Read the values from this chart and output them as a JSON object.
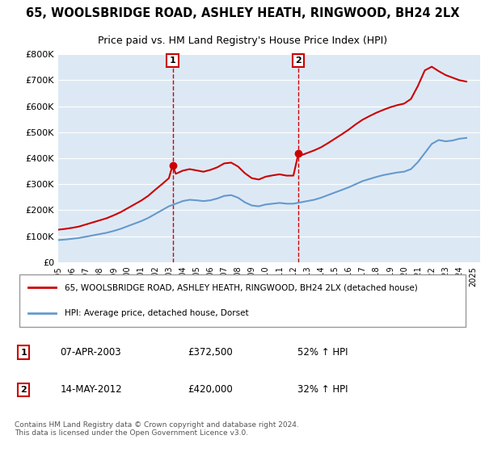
{
  "title": "65, WOOLSBRIDGE ROAD, ASHLEY HEATH, RINGWOOD, BH24 2LX",
  "subtitle": "Price paid vs. HM Land Registry's House Price Index (HPI)",
  "legend_line1": "65, WOOLSBRIDGE ROAD, ASHLEY HEATH, RINGWOOD, BH24 2LX (detached house)",
  "legend_line2": "HPI: Average price, detached house, Dorset",
  "footnote": "Contains HM Land Registry data © Crown copyright and database right 2024.\nThis data is licensed under the Open Government Licence v3.0.",
  "sale1": {
    "label": "1",
    "date": "07-APR-2003",
    "price": "£372,500",
    "change": "52% ↑ HPI"
  },
  "sale2": {
    "label": "2",
    "date": "14-MAY-2012",
    "price": "£420,000",
    "change": "32% ↑ HPI"
  },
  "sale1_x": 2003.27,
  "sale1_y": 372500,
  "sale2_x": 2012.37,
  "sale2_y": 420000,
  "bg_color": "#dce9f5",
  "plot_bg": "#dce9f5",
  "red_color": "#cc0000",
  "blue_color": "#6699cc",
  "ylim": [
    0,
    800000
  ],
  "xlim_start": 1995,
  "xlim_end": 2025.5,
  "hpi_years": [
    1995,
    1995.5,
    1996,
    1996.5,
    1997,
    1997.5,
    1998,
    1998.5,
    1999,
    1999.5,
    2000,
    2000.5,
    2001,
    2001.5,
    2002,
    2002.5,
    2003,
    2003.5,
    2004,
    2004.5,
    2005,
    2005.5,
    2006,
    2006.5,
    2007,
    2007.5,
    2008,
    2008.5,
    2009,
    2009.5,
    2010,
    2010.5,
    2011,
    2011.5,
    2012,
    2012.5,
    2013,
    2013.5,
    2014,
    2014.5,
    2015,
    2015.5,
    2016,
    2016.5,
    2017,
    2017.5,
    2018,
    2018.5,
    2019,
    2019.5,
    2020,
    2020.5,
    2021,
    2021.5,
    2022,
    2022.5,
    2023,
    2023.5,
    2024,
    2024.5
  ],
  "hpi_values": [
    85000,
    87000,
    90000,
    93000,
    98000,
    103000,
    108000,
    113000,
    120000,
    128000,
    138000,
    148000,
    158000,
    170000,
    185000,
    200000,
    215000,
    225000,
    235000,
    240000,
    238000,
    235000,
    238000,
    245000,
    255000,
    258000,
    248000,
    230000,
    218000,
    215000,
    222000,
    225000,
    228000,
    225000,
    225000,
    230000,
    235000,
    240000,
    248000,
    258000,
    268000,
    278000,
    288000,
    300000,
    312000,
    320000,
    328000,
    335000,
    340000,
    345000,
    348000,
    358000,
    385000,
    420000,
    455000,
    470000,
    465000,
    468000,
    475000,
    478000
  ],
  "red_years": [
    1995,
    1995.5,
    1996,
    1996.5,
    1997,
    1997.5,
    1998,
    1998.5,
    1999,
    1999.5,
    2000,
    2000.5,
    2001,
    2001.5,
    2002,
    2002.5,
    2003,
    2003.27,
    2003.5,
    2004,
    2004.5,
    2005,
    2005.5,
    2006,
    2006.5,
    2007,
    2007.5,
    2008,
    2008.5,
    2009,
    2009.5,
    2010,
    2010.5,
    2011,
    2011.5,
    2012,
    2012.37,
    2012.5,
    2013,
    2013.5,
    2014,
    2014.5,
    2015,
    2015.5,
    2016,
    2016.5,
    2017,
    2017.5,
    2018,
    2018.5,
    2019,
    2019.5,
    2020,
    2020.5,
    2021,
    2021.5,
    2022,
    2022.5,
    2023,
    2023.5,
    2024,
    2024.5
  ],
  "red_values": [
    125000,
    128000,
    132000,
    137000,
    145000,
    153000,
    161000,
    169000,
    180000,
    192000,
    207000,
    222000,
    237000,
    255000,
    278000,
    300000,
    323000,
    372500,
    340000,
    352000,
    358000,
    353000,
    348000,
    355000,
    365000,
    380000,
    383000,
    368000,
    342000,
    323000,
    318000,
    329000,
    334000,
    338000,
    333000,
    333000,
    420000,
    410000,
    420000,
    430000,
    442000,
    458000,
    475000,
    492000,
    510000,
    530000,
    548000,
    562000,
    575000,
    586000,
    596000,
    604000,
    610000,
    628000,
    678000,
    738000,
    752000,
    735000,
    720000,
    710000,
    700000,
    695000
  ]
}
